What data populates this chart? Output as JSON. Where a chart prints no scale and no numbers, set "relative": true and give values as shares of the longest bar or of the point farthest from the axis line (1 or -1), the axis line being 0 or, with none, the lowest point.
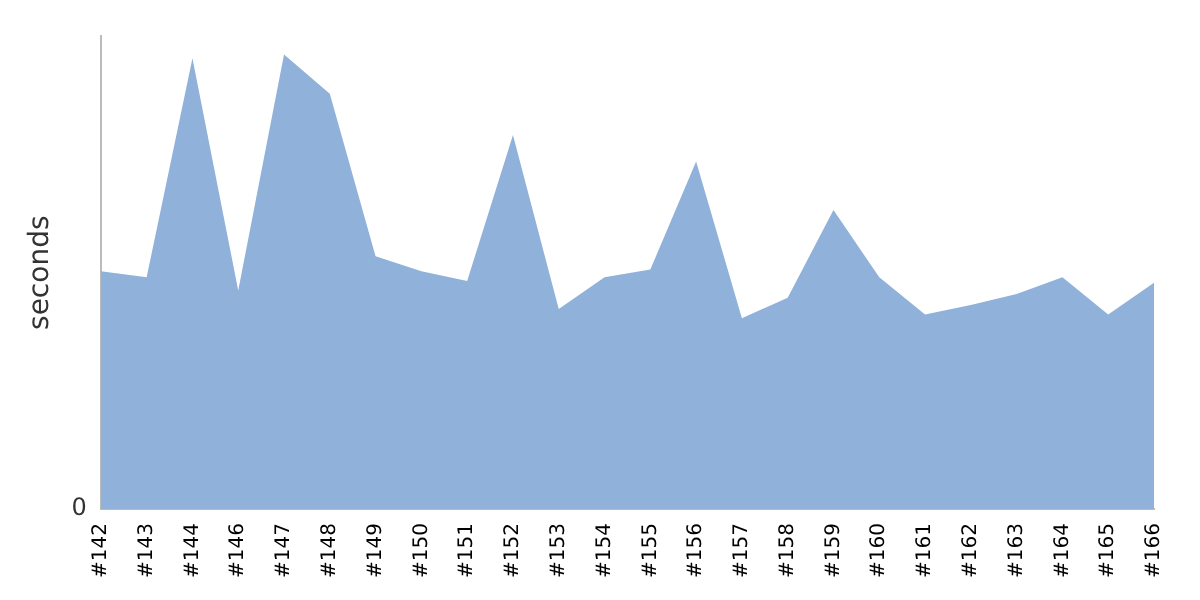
{
  "chart_data": {
    "type": "area",
    "ylabel": "seconds",
    "relative": true,
    "annotations": [
      "0"
    ],
    "grid": false,
    "legend": false,
    "categories": [
      "#142",
      "#143",
      "#144",
      "#146",
      "#147",
      "#148",
      "#149",
      "#150",
      "#151",
      "#152",
      "#153",
      "#154",
      "#155",
      "#156",
      "#157",
      "#158",
      "#159",
      "#160",
      "#161",
      "#162",
      "#163",
      "#164",
      "#165",
      "#166"
    ],
    "series": [
      {
        "color": "#8fb1da",
        "values": [
          0.523,
          0.51,
          0.992,
          0.481,
          1,
          0.914,
          0.556,
          0.523,
          0.502,
          0.823,
          0.44,
          0.51,
          0.527,
          0.765,
          0.42,
          0.465,
          0.658,
          0.51,
          0.428,
          0.449,
          0.473,
          0.51,
          0.428,
          0.498
        ]
      }
    ]
  }
}
